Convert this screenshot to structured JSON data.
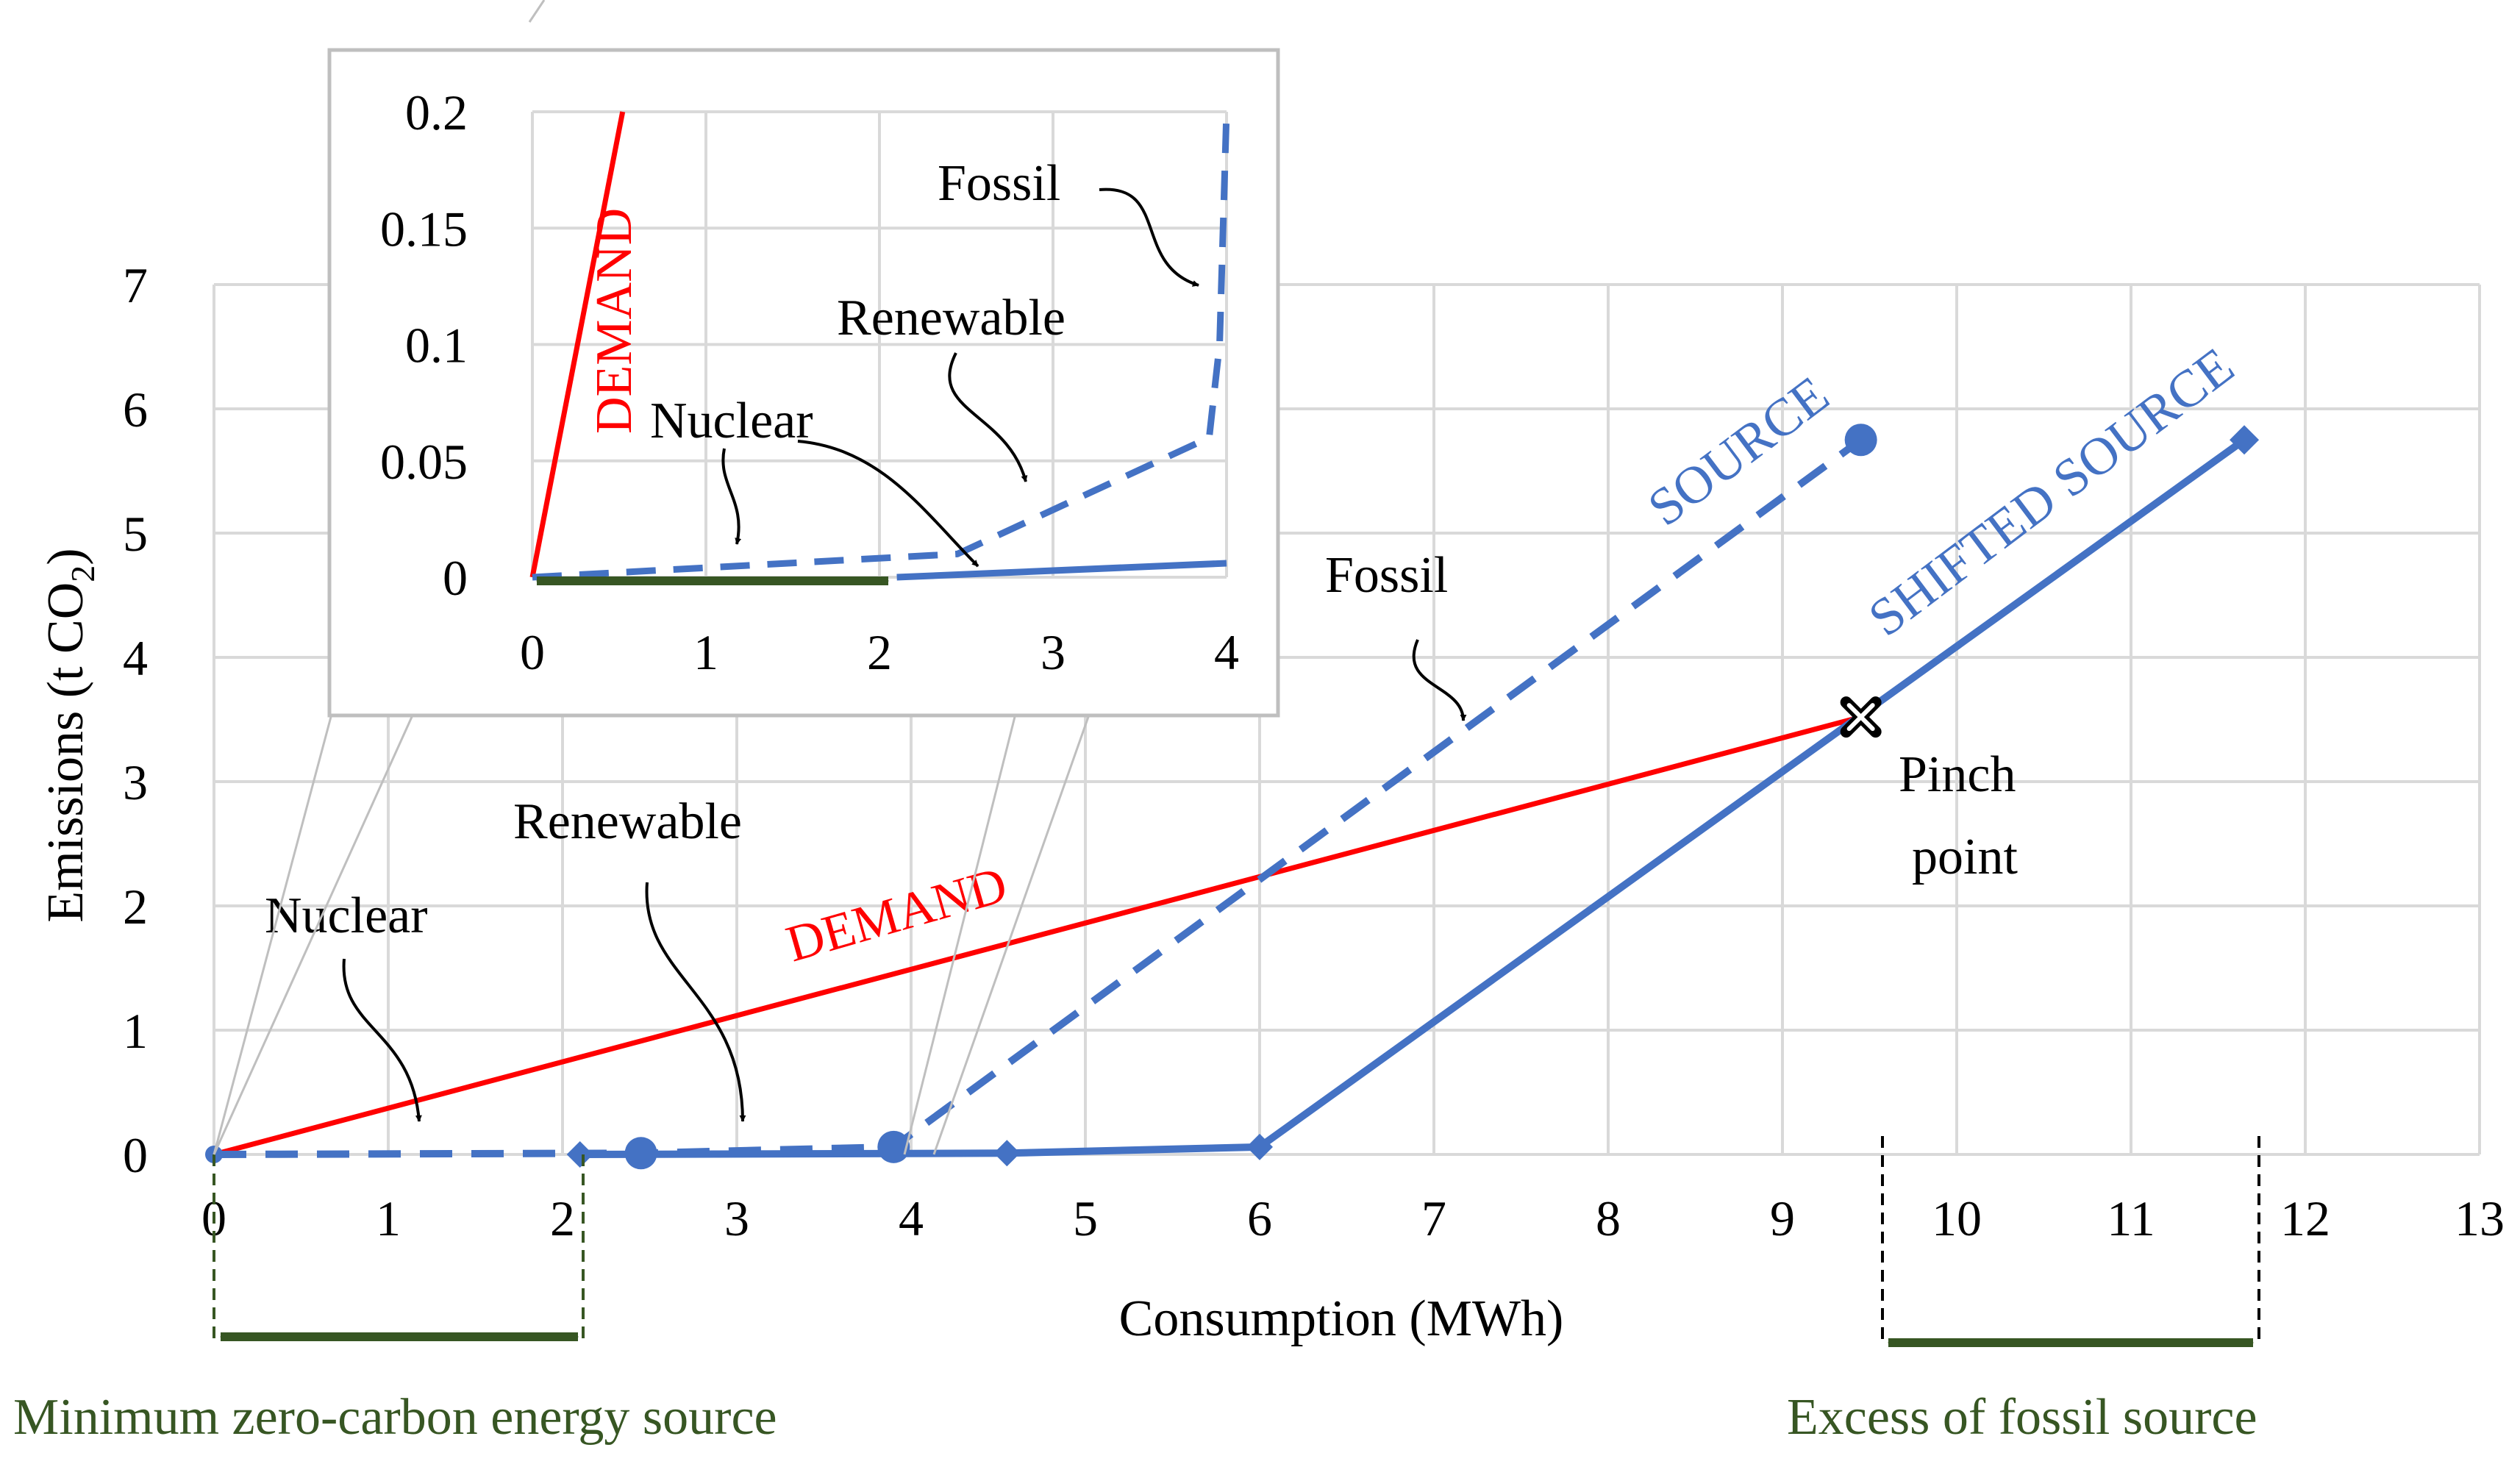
{
  "chart_data": [
    {
      "type": "line",
      "xlabel": "Consumption (MWh)",
      "ylabel": "Emissions (t CO",
      "ylabel_sub": "2",
      "ylabel_end": ")",
      "xlim": [
        0,
        13
      ],
      "ylim": [
        0,
        7
      ],
      "x_ticks": [
        "0",
        "1",
        "2",
        "3",
        "4",
        "5",
        "6",
        "7",
        "8",
        "9",
        "10",
        "11",
        "12",
        "13"
      ],
      "y_ticks": [
        "0",
        "1",
        "2",
        "3",
        "4",
        "5",
        "6",
        "7"
      ],
      "grid": true,
      "series": [
        {
          "name": "DEMAND",
          "color": "#ff0000",
          "style": "solid",
          "x": [
            0,
            9.45
          ],
          "y": [
            0,
            3.52
          ]
        },
        {
          "name": "SOURCE",
          "color": "#4472c4",
          "style": "dashed",
          "marker": "circle",
          "x": [
            0,
            2.45,
            3.9,
            9.45
          ],
          "y": [
            0,
            0.01,
            0.06,
            5.75
          ]
        },
        {
          "name": "SHIFTED SOURCE",
          "color": "#4472c4",
          "style": "solid",
          "marker": "diamond",
          "x": [
            2.1,
            4.55,
            6.0,
            11.65
          ],
          "y": [
            0,
            0.01,
            0.06,
            5.75
          ]
        }
      ],
      "pinch_point": {
        "x": 9.45,
        "y": 3.52
      },
      "annotations": {
        "demand": "DEMAND",
        "source": "SOURCE",
        "shifted_source": "SHIFTED SOURCE",
        "fossil": "Fossil",
        "renewable": "Renewable",
        "nuclear": "Nuclear",
        "pinch_1": "Pinch",
        "pinch_2": "point",
        "min_zero_carbon": "Minimum zero-carbon energy source",
        "excess_fossil": "Excess of fossil source"
      },
      "brackets": {
        "min_zero_carbon": [
          0,
          2.1
        ],
        "excess_fossil": [
          9.6,
          11.75
        ]
      }
    },
    {
      "type": "line",
      "inset": true,
      "xlim": [
        0,
        4
      ],
      "ylim": [
        0,
        0.2
      ],
      "x_ticks": [
        "0",
        "1",
        "2",
        "3",
        "4"
      ],
      "y_ticks": [
        "0",
        "0.05",
        "0.1",
        "0.15",
        "0.2"
      ],
      "grid": true,
      "series": [
        {
          "name": "DEMAND",
          "color": "#ff0000",
          "style": "solid",
          "x": [
            0,
            0.52
          ],
          "y": [
            0,
            0.2
          ]
        },
        {
          "name": "SOURCE",
          "color": "#4472c4",
          "style": "dashed",
          "x": [
            0,
            2.45,
            3.9,
            3.96,
            4.0
          ],
          "y": [
            0,
            0.01,
            0.06,
            0.1,
            0.2
          ]
        },
        {
          "name": "SHIFTED SOURCE",
          "color": "#4472c4",
          "style": "solid",
          "x": [
            2.1,
            4.0
          ],
          "y": [
            0,
            0.006
          ]
        }
      ],
      "bracket": [
        0,
        2.1
      ],
      "annotations": {
        "demand": "DEMAND",
        "fossil": "Fossil",
        "renewable": "Renewable",
        "nuclear": "Nuclear"
      }
    }
  ]
}
